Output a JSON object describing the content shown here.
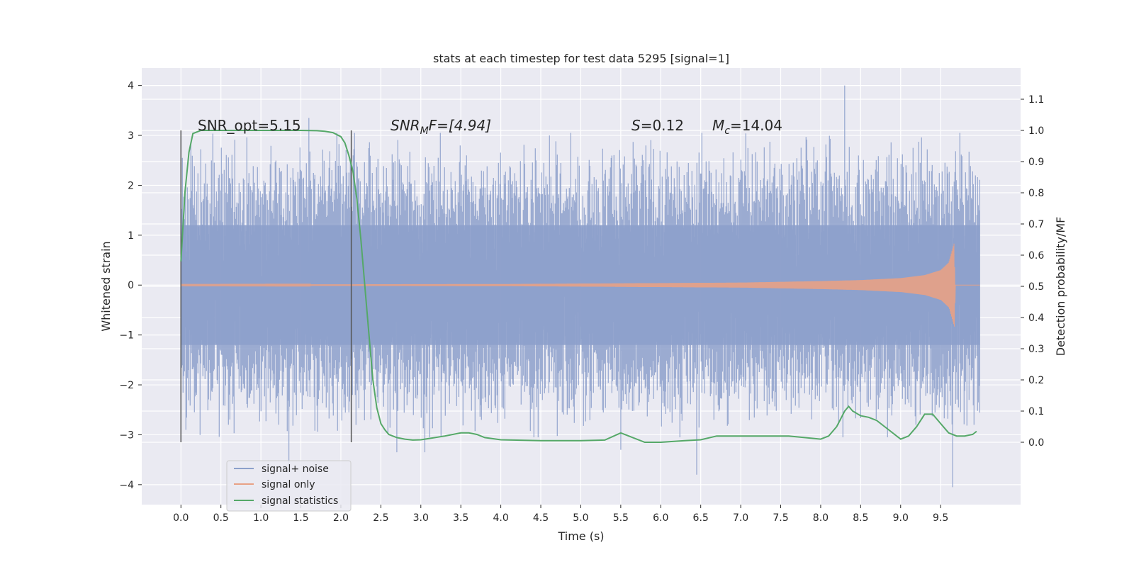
{
  "chart_data": {
    "type": "line",
    "title": "stats at each timestep for test data 5295 [signal=1]",
    "xlabel": "Time (s)",
    "ylabel_left": "Whitened strain",
    "ylabel_right": "Detection probability/MF",
    "xlim": [
      -0.49,
      10.5
    ],
    "ylim_left": [
      -4.4,
      4.35
    ],
    "ylim_right": [
      -0.2,
      1.2
    ],
    "x_ticks": [
      0.0,
      0.5,
      1.0,
      1.5,
      2.0,
      2.5,
      3.0,
      3.5,
      4.0,
      4.5,
      5.0,
      5.5,
      6.0,
      6.5,
      7.0,
      7.5,
      8.0,
      8.5,
      9.0,
      9.5
    ],
    "x_tick_labels": [
      "0.0",
      "0.5",
      "1.0",
      "1.5",
      "2.0",
      "2.5",
      "3.0",
      "3.5",
      "4.0",
      "4.5",
      "5.0",
      "5.5",
      "6.0",
      "6.5",
      "7.0",
      "7.5",
      "8.0",
      "8.5",
      "9.0",
      "9.5"
    ],
    "y_left_ticks": [
      4,
      3,
      2,
      1,
      0,
      -1,
      -2,
      -3,
      -4
    ],
    "y_left_tick_labels": [
      "4",
      "3",
      "2",
      "1",
      "0",
      "−1",
      "−2",
      "−3",
      "−4"
    ],
    "y_right_ticks": [
      1.1,
      1.0,
      0.9,
      0.8,
      0.7,
      0.6,
      0.5,
      0.4,
      0.3,
      0.2,
      0.1,
      0.0
    ],
    "y_right_tick_labels": [
      "1.1",
      "1.0",
      "0.9",
      "0.8",
      "0.7",
      "0.6",
      "0.5",
      "0.4",
      "0.3",
      "0.2",
      "0.1",
      "0.0"
    ],
    "grid": true,
    "legend_position": "lower-left",
    "vertical_markers": {
      "x": [
        0.0,
        2.13
      ],
      "y_range": [
        -3.15,
        3.1
      ],
      "color": "#555555"
    },
    "annotations": {
      "snr_opt": "SNR_opt=5.15",
      "snr_mf_main": "SNR",
      "snr_mf_sub": "M",
      "snr_mf_rest": "F=[4.94]",
      "s_var": "S",
      "s_rest": "=0.12",
      "mc_var": "M",
      "mc_sub": "c",
      "mc_rest": "=14.04"
    },
    "series": [
      {
        "name": "signal+ noise",
        "axis": "left",
        "color": "#8da0cb",
        "style": "noise band",
        "x_range": [
          0.0,
          9.99
        ],
        "amplitude_typical": 1.2,
        "peaks": [
          [
            1.6,
            3.35
          ],
          [
            1.35,
            -3.6
          ],
          [
            6.45,
            -3.8
          ],
          [
            8.3,
            4.0
          ],
          [
            9.65,
            -4.05
          ],
          [
            2.7,
            -3.35
          ],
          [
            3.05,
            -3.35
          ],
          [
            5.5,
            -3.3
          ]
        ]
      },
      {
        "name": "signal only",
        "axis": "left",
        "color": "#e8a185",
        "style": "chirp",
        "x": [
          0.0,
          2.0,
          4.0,
          5.0,
          6.0,
          7.0,
          8.0,
          8.5,
          9.0,
          9.3,
          9.5,
          9.6,
          9.67,
          9.68,
          10.0
        ],
        "amplitude": [
          0.01,
          0.015,
          0.02,
          0.03,
          0.04,
          0.05,
          0.08,
          0.1,
          0.14,
          0.2,
          0.3,
          0.45,
          0.85,
          0.0,
          0.0
        ]
      },
      {
        "name": "signal statistics",
        "axis": "right",
        "color": "#55a868",
        "x": [
          0.0,
          0.05,
          0.1,
          0.15,
          0.25,
          0.5,
          1.0,
          1.5,
          1.7,
          1.8,
          1.9,
          2.0,
          2.05,
          2.1,
          2.15,
          2.2,
          2.25,
          2.3,
          2.35,
          2.4,
          2.45,
          2.5,
          2.55,
          2.6,
          2.7,
          2.8,
          2.9,
          3.0,
          3.1,
          3.3,
          3.5,
          3.6,
          3.7,
          3.8,
          4.0,
          4.5,
          5.0,
          5.3,
          5.5,
          5.6,
          5.8,
          6.0,
          6.3,
          6.5,
          6.7,
          6.8,
          7.0,
          7.3,
          7.5,
          7.6,
          7.8,
          8.0,
          8.1,
          8.2,
          8.3,
          8.35,
          8.4,
          8.5,
          8.6,
          8.7,
          8.8,
          9.0,
          9.1,
          9.2,
          9.3,
          9.4,
          9.5,
          9.6,
          9.7,
          9.8,
          9.9,
          9.95
        ],
        "y": [
          0.58,
          0.8,
          0.93,
          0.99,
          1.0,
          1.0,
          1.0,
          1.0,
          0.999,
          0.997,
          0.993,
          0.98,
          0.96,
          0.92,
          0.87,
          0.78,
          0.65,
          0.5,
          0.35,
          0.2,
          0.11,
          0.06,
          0.04,
          0.025,
          0.015,
          0.01,
          0.007,
          0.008,
          0.012,
          0.02,
          0.03,
          0.03,
          0.025,
          0.015,
          0.008,
          0.005,
          0.005,
          0.007,
          0.03,
          0.02,
          0.0,
          0.0,
          0.005,
          0.008,
          0.02,
          0.02,
          0.02,
          0.02,
          0.02,
          0.02,
          0.015,
          0.01,
          0.02,
          0.05,
          0.1,
          0.115,
          0.1,
          0.085,
          0.08,
          0.07,
          0.05,
          0.01,
          0.02,
          0.05,
          0.09,
          0.09,
          0.06,
          0.03,
          0.02,
          0.02,
          0.025,
          0.035
        ]
      }
    ]
  }
}
